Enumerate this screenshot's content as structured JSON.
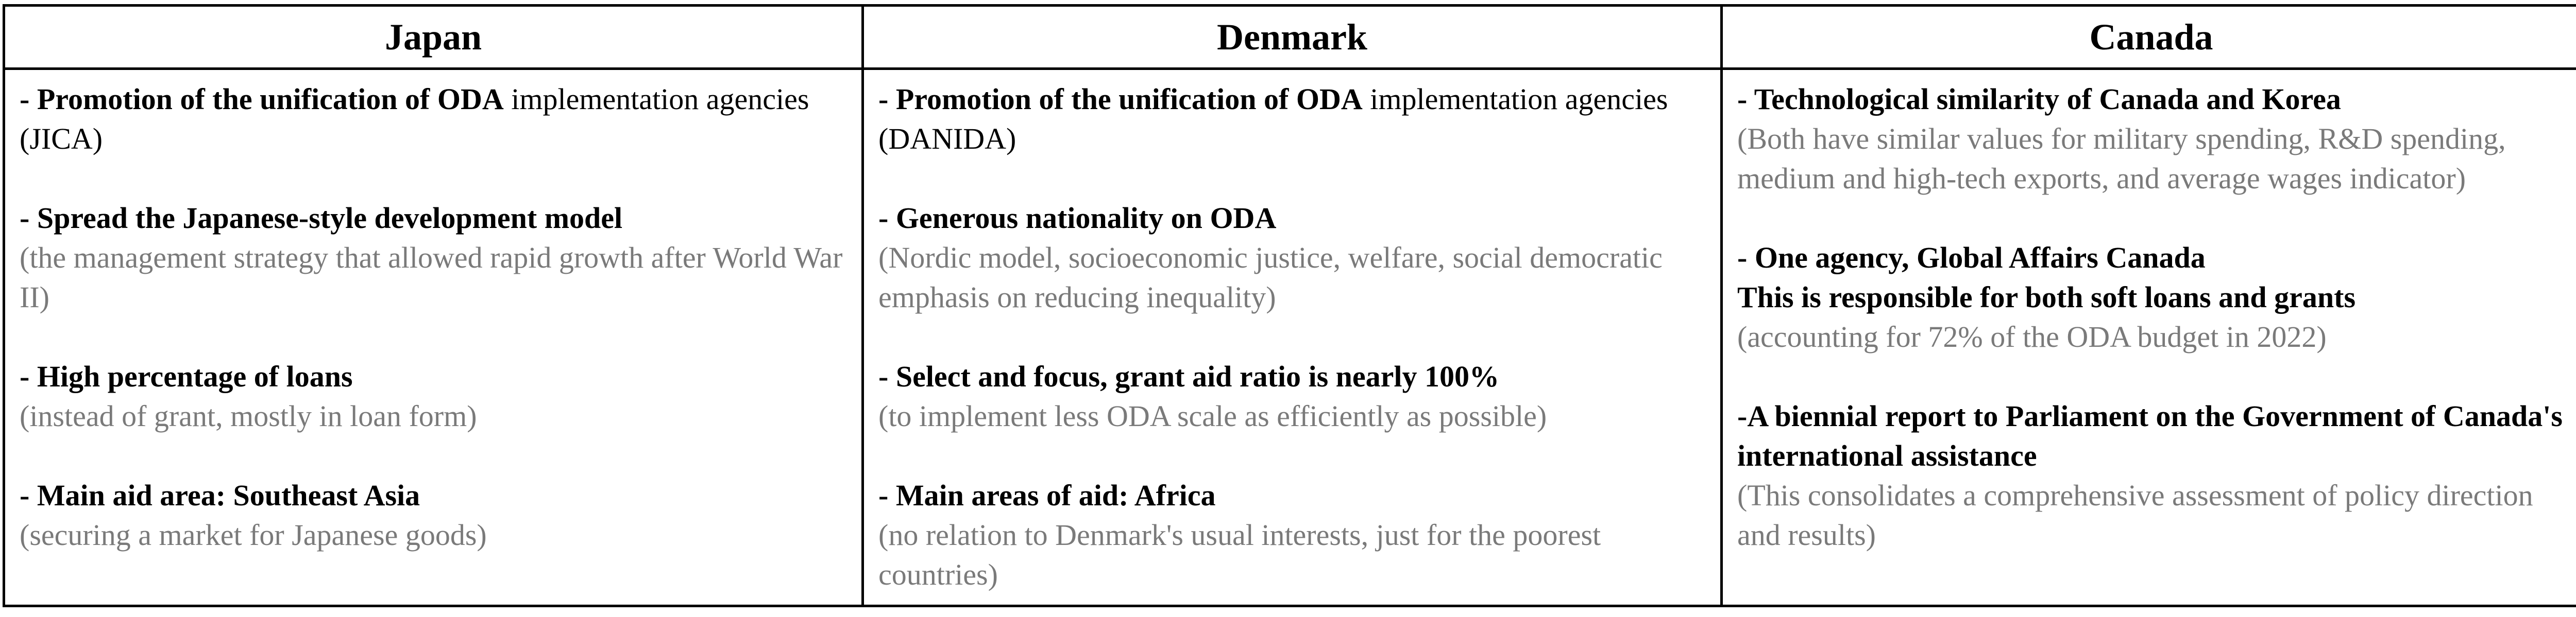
{
  "colors": {
    "border": "#000000",
    "heading_text": "#000000",
    "detail_text": "#7a7a7a"
  },
  "columns": [
    {
      "header": "Japan",
      "items": [
        {
          "head_bold": "- Promotion of the unification of ODA",
          "head_normal": " implementation agencies (JICA)",
          "detail": ""
        },
        {
          "head_bold": "- Spread the Japanese-style development model",
          "head_normal": "",
          "detail": "(the management strategy that allowed rapid growth after World War II)"
        },
        {
          "head_bold": "- High percentage of loans",
          "head_normal": "",
          "detail": "(instead of grant, mostly in loan form)"
        },
        {
          "head_bold": "- Main aid area: Southeast Asia",
          "head_normal": "",
          "detail": "(securing a market for Japanese goods)"
        }
      ]
    },
    {
      "header": "Denmark",
      "items": [
        {
          "head_bold": "- Promotion of the unification of ODA",
          "head_normal": " implementation agencies (DANIDA)",
          "detail": ""
        },
        {
          "head_bold": "- Generous nationality on ODA",
          "head_normal": "",
          "detail": "(Nordic model, socioeconomic justice, welfare, social democratic emphasis on reducing inequality)"
        },
        {
          "head_bold": "- Select and focus, grant aid ratio is nearly 100%",
          "head_normal": "",
          "detail": "(to implement less ODA scale as efficiently as possible)"
        },
        {
          "head_bold": "- Main areas of aid: Africa",
          "head_normal": "",
          "detail": "(no relation to Denmark's usual interests, just for the poorest countries)"
        }
      ]
    },
    {
      "header": "Canada",
      "items": [
        {
          "head_bold": "- Technological similarity of Canada and Korea",
          "head_bold_2": "",
          "head_normal": "",
          "detail": "(Both have similar values for military spending, R&D spending, medium and high-tech exports, and average wages indicator)"
        },
        {
          "head_bold": "- One agency, Global Affairs Canada",
          "head_bold_2": "This is responsible for both soft loans and grants",
          "head_normal": "",
          "detail": "(accounting for 72% of the ODA budget in 2022)"
        },
        {
          "head_bold": "-A biennial report to Parliament on the Government of Canada's international assistance",
          "head_bold_2": "",
          "head_normal": "",
          "detail": "(This consolidates a comprehensive assessment of policy direction and results)"
        }
      ]
    }
  ]
}
